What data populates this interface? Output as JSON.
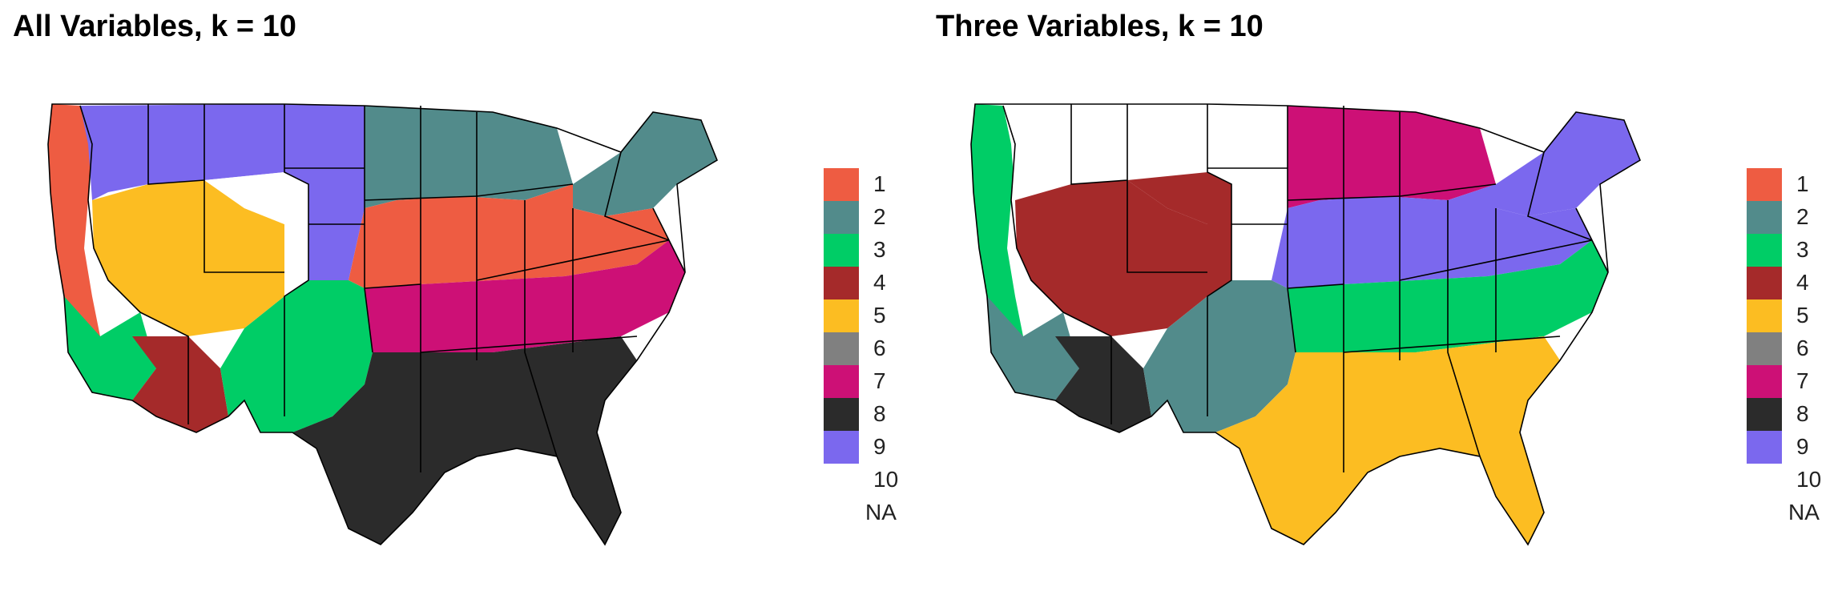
{
  "colors": {
    "1": "#ee5c42",
    "2": "#528b8b",
    "3": "#00cd66",
    "4": "#a52a2a",
    "5": "#fcbd22",
    "6": "#808080",
    "7": "#cd1076",
    "8": "#2b2b2b",
    "9": "#7b68ee",
    "10": "#ffffff"
  },
  "panels": [
    {
      "title": "All Variables, k = 10",
      "legend": [
        "1",
        "2",
        "3",
        "4",
        "5",
        "6",
        "7",
        "8",
        "9",
        "10"
      ],
      "na_label": "NA",
      "region_classes": {
        "pacific-coast": "1",
        "northern-rockies": "9",
        "great-basin": "5",
        "desert-southwest": "4",
        "southern-california": "3",
        "wyoming-highlands": "10",
        "northern-plains": "9",
        "upper-midwest": "2",
        "corn-belt": "1",
        "mid-south": "7",
        "gulf-coast": "8",
        "texas-plains": "3",
        "new-england": "2"
      }
    },
    {
      "title": "Three Variables, k = 10",
      "legend": [
        "1",
        "2",
        "3",
        "4",
        "5",
        "6",
        "7",
        "8",
        "9",
        "10"
      ],
      "na_label": "NA",
      "region_classes": {
        "pacific-coast": "3",
        "northern-rockies": "10",
        "great-basin": "4",
        "desert-southwest": "8",
        "southern-california": "2",
        "wyoming-highlands": "4",
        "northern-plains": "10",
        "upper-midwest": "7",
        "corn-belt": "9",
        "mid-south": "3",
        "gulf-coast": "5",
        "texas-plains": "2",
        "new-england": "9"
      }
    }
  ]
}
